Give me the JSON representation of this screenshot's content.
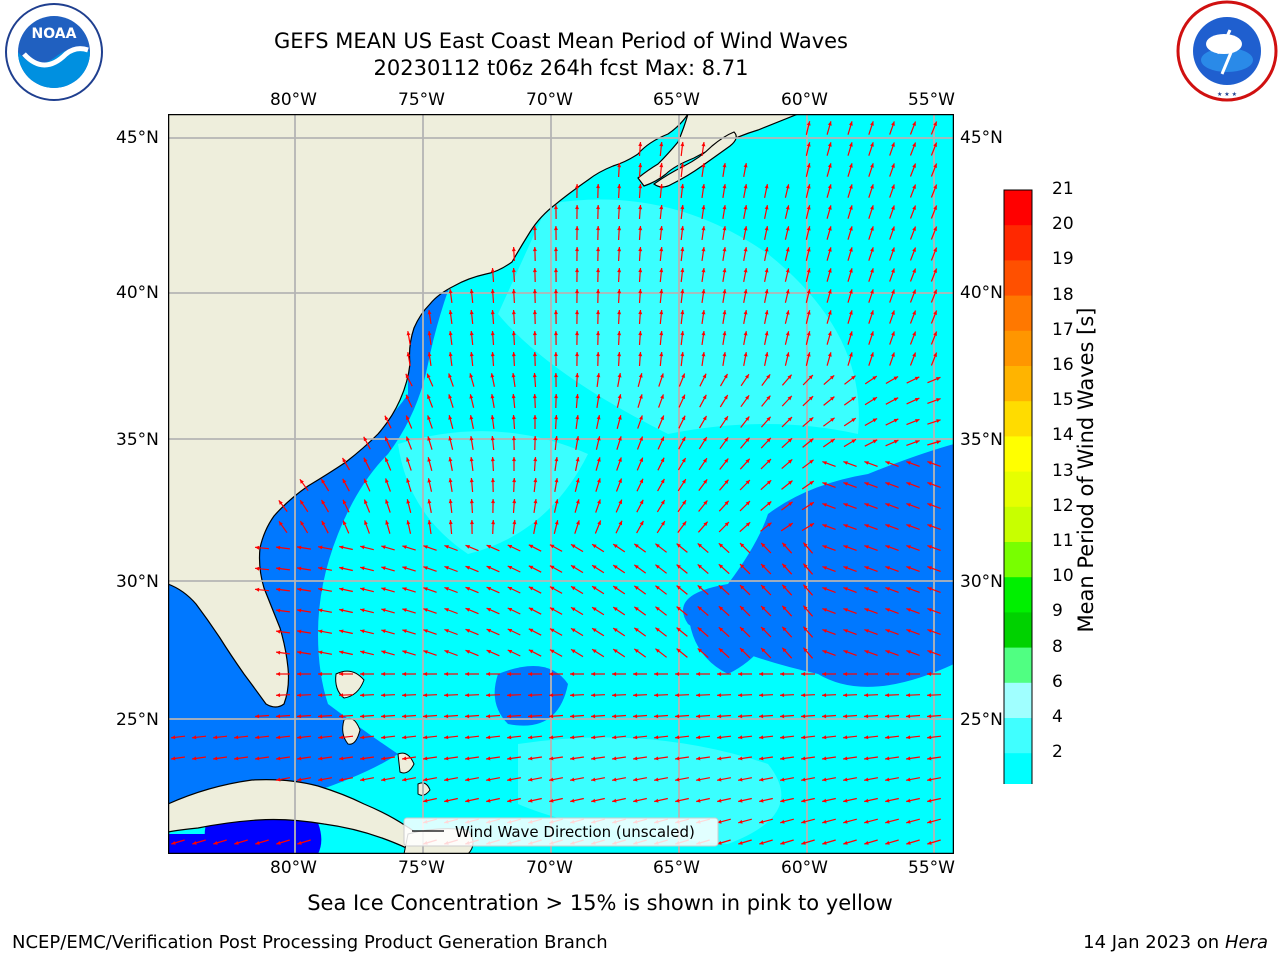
{
  "header": {
    "title_line1": "GEFS MEAN US East Coast Mean Period of Wind Waves",
    "title_line2": "20230112 t06z 264h fcst   Max: 8.71"
  },
  "logos": {
    "noaa_text": "NOAA",
    "noaa_ring_text": "NATIONAL OCEANIC AND ATMOSPHERIC ADMINISTRATION · U.S. DEPARTMENT OF COMMERCE",
    "nws_ring_text": "NATIONAL WEATHER SERVICE"
  },
  "map": {
    "lon_labels": [
      "80°W",
      "75°W",
      "70°W",
      "65°W",
      "60°W",
      "55°W"
    ],
    "lat_labels": [
      "45°N",
      "40°N",
      "35°N",
      "30°N",
      "25°N"
    ],
    "legend_label": "Wind Wave Direction (unscaled)",
    "colors": {
      "land": "#eeeedc",
      "ocean_main": "#00ffff",
      "ocean_light": "#40ffff",
      "ocean_mid": "#00b4ff",
      "ocean_dark": "#0078ff",
      "ocean_deep": "#0000ff",
      "arrow": "#ff0000",
      "grid": "#b4b4b4"
    }
  },
  "colorbar": {
    "label": "Mean Period of Wind Waves [s]",
    "ticks": [
      "21",
      "20",
      "19",
      "18",
      "17",
      "16",
      "15",
      "14",
      "13",
      "12",
      "11",
      "10",
      "9",
      "8",
      "6",
      "4",
      "2"
    ],
    "colors": [
      "#ff0000",
      "#ff2800",
      "#ff5000",
      "#ff7800",
      "#ff9600",
      "#ffb400",
      "#ffdc00",
      "#ffff00",
      "#e6ff00",
      "#c8ff00",
      "#78ff00",
      "#00f000",
      "#00d200",
      "#50ff82",
      "#a0ffff",
      "#40ffff",
      "#00ffff",
      "#0078ff"
    ],
    "under_color": "#0000ff"
  },
  "footer": {
    "sea_ice_note": "Sea Ice Concentration > 15% is shown in pink to yellow",
    "left": "NCEP/EMC/Verification Post Processing Product Generation Branch",
    "right_date": "14 Jan 2023 on ",
    "right_host": "Hera"
  }
}
